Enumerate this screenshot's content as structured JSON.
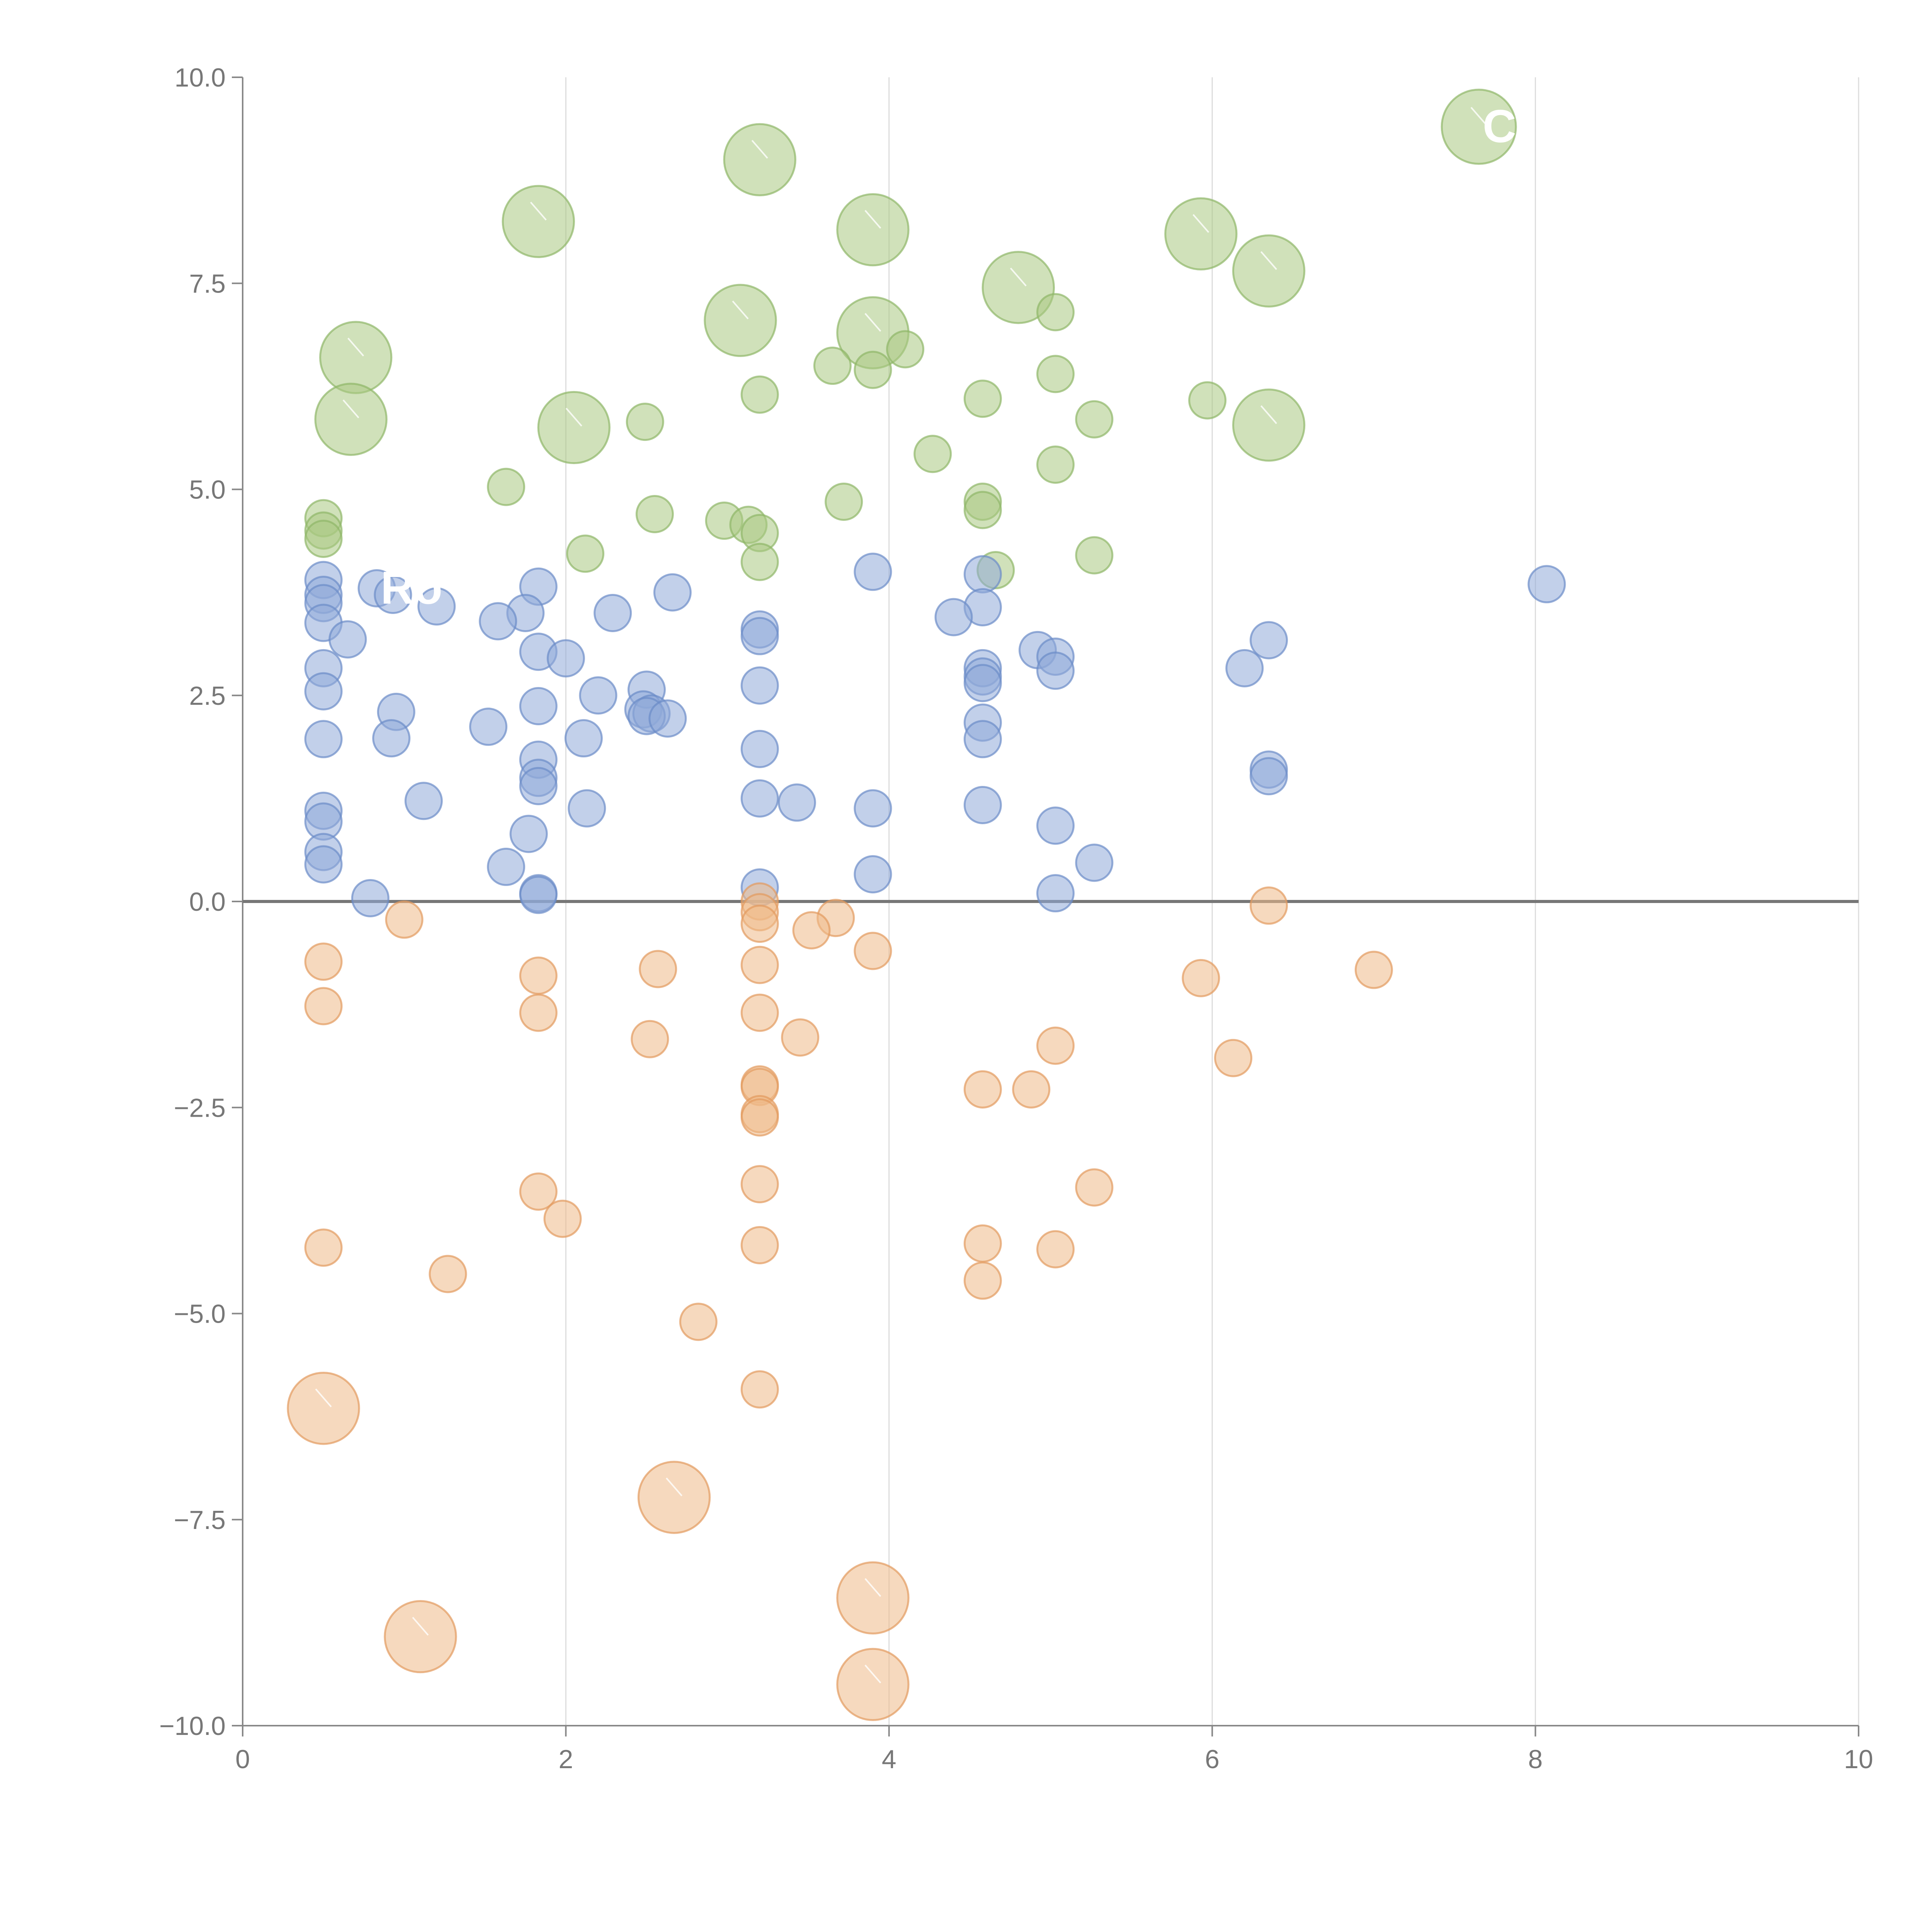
{
  "chart_data": {
    "type": "scatter",
    "title": "",
    "xlabel": "",
    "ylabel": "",
    "xlim": [
      0,
      10
    ],
    "ylim": [
      -10,
      10
    ],
    "x_ticks": [
      "0",
      "2",
      "4",
      "6",
      "8",
      "10"
    ],
    "x_tick_values": [
      0,
      2,
      4,
      6,
      8,
      10
    ],
    "y_ticks": [
      "10.0",
      "7.5",
      "5.0",
      "2.5",
      "0.0",
      "−2.5",
      "−5.0",
      "−7.5",
      "−10.0"
    ],
    "y_tick_values": [
      10,
      7.5,
      5,
      2.5,
      0,
      -2.5,
      -5,
      -7.5,
      -10
    ],
    "grid_x": true,
    "grid_y": false,
    "zero_line": true,
    "legend": "none",
    "series": [
      {
        "name": "green",
        "color": "#a9c882",
        "stroke": "#8fb668",
        "points": [
          [
            7.65,
            9.4,
            1
          ],
          [
            3.2,
            9.0,
            0.96
          ],
          [
            1.83,
            8.25,
            0.96
          ],
          [
            3.9,
            8.15,
            0.96
          ],
          [
            5.93,
            8.1,
            0.96
          ],
          [
            6.35,
            7.65,
            0.96
          ],
          [
            4.8,
            7.45,
            0.96
          ],
          [
            3.08,
            7.05,
            0.96
          ],
          [
            3.9,
            6.9,
            0.96
          ],
          [
            0.7,
            6.6,
            0.96
          ],
          [
            0.67,
            5.85,
            0.96
          ],
          [
            2.05,
            5.75,
            0.96
          ],
          [
            6.35,
            5.78,
            0.96
          ],
          [
            5.03,
            7.15,
            0.5
          ],
          [
            4.1,
            6.7,
            0.5
          ],
          [
            3.65,
            6.5,
            0.5
          ],
          [
            3.9,
            6.45,
            0.5
          ],
          [
            5.03,
            6.4,
            0.5
          ],
          [
            3.2,
            6.15,
            0.5
          ],
          [
            4.58,
            6.1,
            0.5
          ],
          [
            5.97,
            6.08,
            0.5
          ],
          [
            5.27,
            5.85,
            0.5
          ],
          [
            2.49,
            5.82,
            0.5
          ],
          [
            4.27,
            5.43,
            0.5
          ],
          [
            5.03,
            5.3,
            0.5
          ],
          [
            1.63,
            5.03,
            0.5
          ],
          [
            3.72,
            4.85,
            0.5
          ],
          [
            4.58,
            4.85,
            0.5
          ],
          [
            4.58,
            4.75,
            0.5
          ],
          [
            2.55,
            4.7,
            0.5
          ],
          [
            0.5,
            4.65,
            0.5
          ],
          [
            2.98,
            4.62,
            0.5
          ],
          [
            3.13,
            4.57,
            0.5
          ],
          [
            0.5,
            4.5,
            0.5
          ],
          [
            3.2,
            4.47,
            0.5
          ],
          [
            0.5,
            4.4,
            0.5
          ],
          [
            2.12,
            4.22,
            0.5
          ],
          [
            5.27,
            4.2,
            0.5
          ],
          [
            3.2,
            4.12,
            0.5
          ],
          [
            4.66,
            4.02,
            0.5
          ]
        ],
        "label_text": "Ci"
      },
      {
        "name": "blue",
        "color": "#8fa9d8",
        "stroke": "#6b8cc7",
        "points": [
          [
            3.9,
            4.0,
            0.5
          ],
          [
            4.58,
            3.97,
            0.5
          ],
          [
            0.5,
            3.9,
            0.5
          ],
          [
            8.07,
            3.85,
            0.5
          ],
          [
            1.83,
            3.82,
            0.5
          ],
          [
            0.83,
            3.8,
            0.5
          ],
          [
            0.93,
            3.72,
            0.5
          ],
          [
            2.66,
            3.75,
            0.5
          ],
          [
            0.5,
            3.72,
            0.5
          ],
          [
            0.5,
            3.62,
            0.5
          ],
          [
            1.2,
            3.58,
            0.5
          ],
          [
            4.58,
            3.57,
            0.5
          ],
          [
            1.75,
            3.5,
            0.5
          ],
          [
            2.29,
            3.5,
            0.5
          ],
          [
            4.4,
            3.45,
            0.5
          ],
          [
            1.58,
            3.4,
            0.5
          ],
          [
            0.5,
            3.38,
            0.5
          ],
          [
            3.2,
            3.3,
            0.5
          ],
          [
            3.2,
            3.22,
            0.5
          ],
          [
            0.65,
            3.18,
            0.5
          ],
          [
            6.35,
            3.17,
            0.5
          ],
          [
            4.92,
            3.05,
            0.5
          ],
          [
            1.83,
            3.03,
            0.5
          ],
          [
            5.03,
            2.97,
            0.5
          ],
          [
            2.0,
            2.95,
            0.5
          ],
          [
            0.5,
            2.83,
            0.5
          ],
          [
            4.58,
            2.83,
            0.5
          ],
          [
            6.2,
            2.83,
            0.5
          ],
          [
            5.03,
            2.8,
            0.5
          ],
          [
            4.58,
            2.73,
            0.5
          ],
          [
            4.58,
            2.65,
            0.5
          ],
          [
            3.2,
            2.62,
            0.5
          ],
          [
            2.5,
            2.57,
            0.5
          ],
          [
            0.5,
            2.55,
            0.5
          ],
          [
            2.2,
            2.5,
            0.5
          ],
          [
            1.83,
            2.37,
            0.5
          ],
          [
            2.48,
            2.33,
            0.5
          ],
          [
            2.53,
            2.28,
            0.5
          ],
          [
            0.95,
            2.3,
            0.5
          ],
          [
            2.5,
            2.25,
            0.5
          ],
          [
            2.63,
            2.22,
            0.5
          ],
          [
            4.58,
            2.17,
            0.5
          ],
          [
            1.52,
            2.12,
            0.5
          ],
          [
            2.11,
            1.98,
            0.5
          ],
          [
            0.92,
            1.98,
            0.5
          ],
          [
            0.5,
            1.97,
            0.5
          ],
          [
            4.58,
            1.97,
            0.5
          ],
          [
            3.2,
            1.85,
            0.5
          ],
          [
            1.83,
            1.72,
            0.5
          ],
          [
            6.35,
            1.6,
            0.5
          ],
          [
            6.35,
            1.52,
            0.5
          ],
          [
            1.83,
            1.5,
            0.5
          ],
          [
            1.83,
            1.4,
            0.5
          ],
          [
            3.2,
            1.25,
            0.5
          ],
          [
            1.12,
            1.22,
            0.5
          ],
          [
            3.43,
            1.2,
            0.5
          ],
          [
            4.58,
            1.17,
            0.5
          ],
          [
            2.13,
            1.13,
            0.5
          ],
          [
            3.9,
            1.13,
            0.5
          ],
          [
            0.5,
            1.1,
            0.5
          ],
          [
            0.5,
            0.97,
            0.5
          ],
          [
            5.03,
            0.92,
            0.5
          ],
          [
            1.77,
            0.82,
            0.5
          ],
          [
            0.5,
            0.6,
            0.5
          ],
          [
            5.27,
            0.47,
            0.5
          ],
          [
            0.5,
            0.45,
            0.5
          ],
          [
            1.63,
            0.42,
            0.5
          ],
          [
            3.9,
            0.33,
            0.5
          ],
          [
            3.2,
            0.17,
            0.5
          ],
          [
            1.83,
            0.1,
            0.5
          ],
          [
            1.83,
            0.08,
            0.5
          ],
          [
            5.03,
            0.1,
            0.5
          ],
          [
            0.79,
            0.04,
            0.5
          ]
        ],
        "label_text": "Ro"
      },
      {
        "name": "orange",
        "color": "#eeb989",
        "stroke": "#e29a5e",
        "points": [
          [
            3.2,
            0.0,
            0.5
          ],
          [
            6.35,
            -0.05,
            0.5
          ],
          [
            3.2,
            -0.13,
            0.5
          ],
          [
            1.0,
            -0.22,
            0.5
          ],
          [
            3.67,
            -0.2,
            0.5
          ],
          [
            3.2,
            -0.27,
            0.5
          ],
          [
            3.52,
            -0.35,
            0.5
          ],
          [
            3.9,
            -0.6,
            0.5
          ],
          [
            0.5,
            -0.73,
            0.5
          ],
          [
            3.2,
            -0.77,
            0.5
          ],
          [
            2.57,
            -0.82,
            0.5
          ],
          [
            7.0,
            -0.83,
            0.5
          ],
          [
            1.83,
            -0.9,
            0.5
          ],
          [
            5.93,
            -0.93,
            0.5
          ],
          [
            0.5,
            -1.27,
            0.5
          ],
          [
            3.2,
            -1.35,
            0.5
          ],
          [
            1.83,
            -1.35,
            0.5
          ],
          [
            2.52,
            -1.67,
            0.5
          ],
          [
            3.45,
            -1.65,
            0.5
          ],
          [
            5.03,
            -1.75,
            0.5
          ],
          [
            6.13,
            -1.9,
            0.5
          ],
          [
            3.2,
            -2.22,
            0.5
          ],
          [
            3.2,
            -2.25,
            0.5
          ],
          [
            4.58,
            -2.28,
            0.5
          ],
          [
            4.88,
            -2.28,
            0.5
          ],
          [
            3.2,
            -2.58,
            0.5
          ],
          [
            3.2,
            -2.62,
            0.5
          ],
          [
            3.2,
            -3.43,
            0.5
          ],
          [
            5.27,
            -3.47,
            0.5
          ],
          [
            1.83,
            -3.52,
            0.5
          ],
          [
            1.98,
            -3.85,
            0.5
          ],
          [
            4.58,
            -4.15,
            0.5
          ],
          [
            3.2,
            -4.17,
            0.5
          ],
          [
            0.5,
            -4.2,
            0.5
          ],
          [
            5.03,
            -4.22,
            0.5
          ],
          [
            1.27,
            -4.52,
            0.5
          ],
          [
            4.58,
            -4.6,
            0.5
          ],
          [
            2.82,
            -5.1,
            0.5
          ],
          [
            3.2,
            -5.92,
            0.5
          ],
          [
            0.5,
            -6.15,
            0.96
          ],
          [
            2.67,
            -7.23,
            0.96
          ],
          [
            3.9,
            -8.45,
            0.96
          ],
          [
            1.1,
            -8.92,
            0.96
          ],
          [
            3.9,
            -9.5,
            0.96
          ]
        ],
        "label_text": ""
      }
    ],
    "point_format": "[x, y, relative_size]",
    "labels": [
      {
        "text": "Ci",
        "series": "green",
        "x": 7.65,
        "y": 9.4
      },
      {
        "text": "Ro",
        "series": "blue",
        "x": 0.83,
        "y": 3.8
      }
    ]
  }
}
